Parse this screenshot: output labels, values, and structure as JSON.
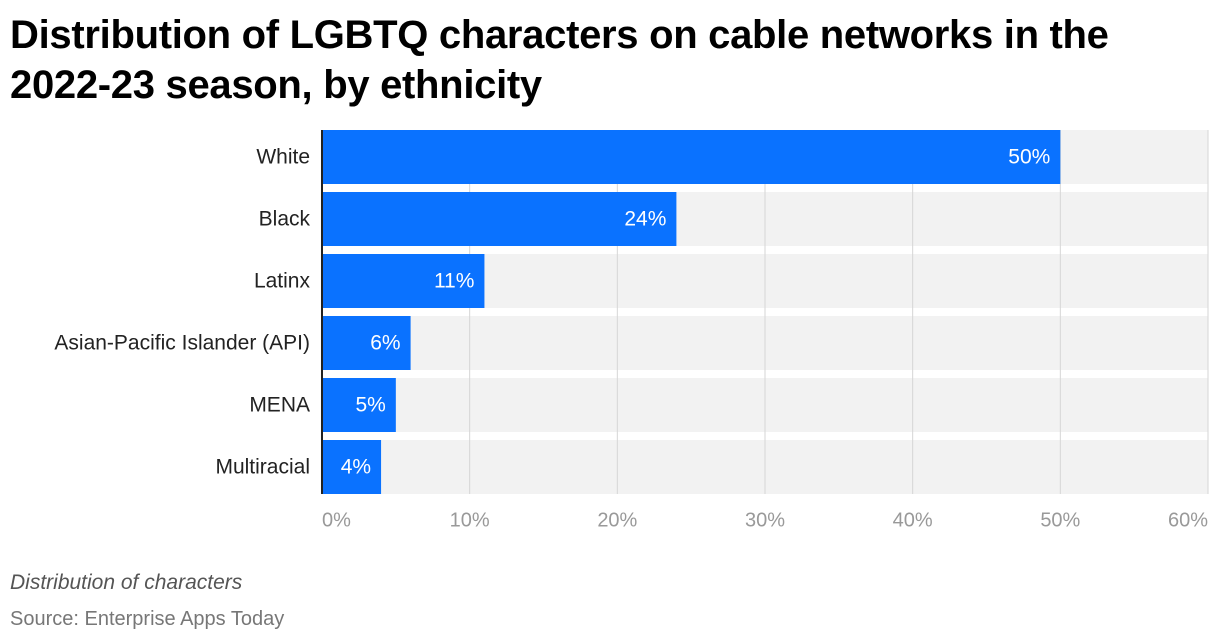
{
  "chart_data": {
    "type": "bar",
    "orientation": "horizontal",
    "title": "Distribution of LGBTQ characters on cable networks in the 2022-23 season, by ethnicity",
    "categories": [
      "White",
      "Black",
      "Latinx",
      "Asian-Pacific Islander (API)",
      "MENA",
      "Multiracial"
    ],
    "values": [
      50,
      24,
      11,
      6,
      5,
      4
    ],
    "value_labels": [
      "50%",
      "24%",
      "11%",
      "6%",
      "5%",
      "4%"
    ],
    "color": "#0a72ff",
    "xlim": [
      0,
      60
    ],
    "xticks": [
      {
        "value": 0,
        "label": "0%"
      },
      {
        "value": 10,
        "label": "10%"
      },
      {
        "value": 20,
        "label": "20%"
      },
      {
        "value": 30,
        "label": "30%"
      },
      {
        "value": 40,
        "label": "40%"
      },
      {
        "value": 50,
        "label": "50%"
      },
      {
        "value": 60,
        "label": "60%"
      }
    ],
    "grid": true,
    "caption": "Distribution of characters",
    "source": "Source: Enterprise Apps Today"
  }
}
